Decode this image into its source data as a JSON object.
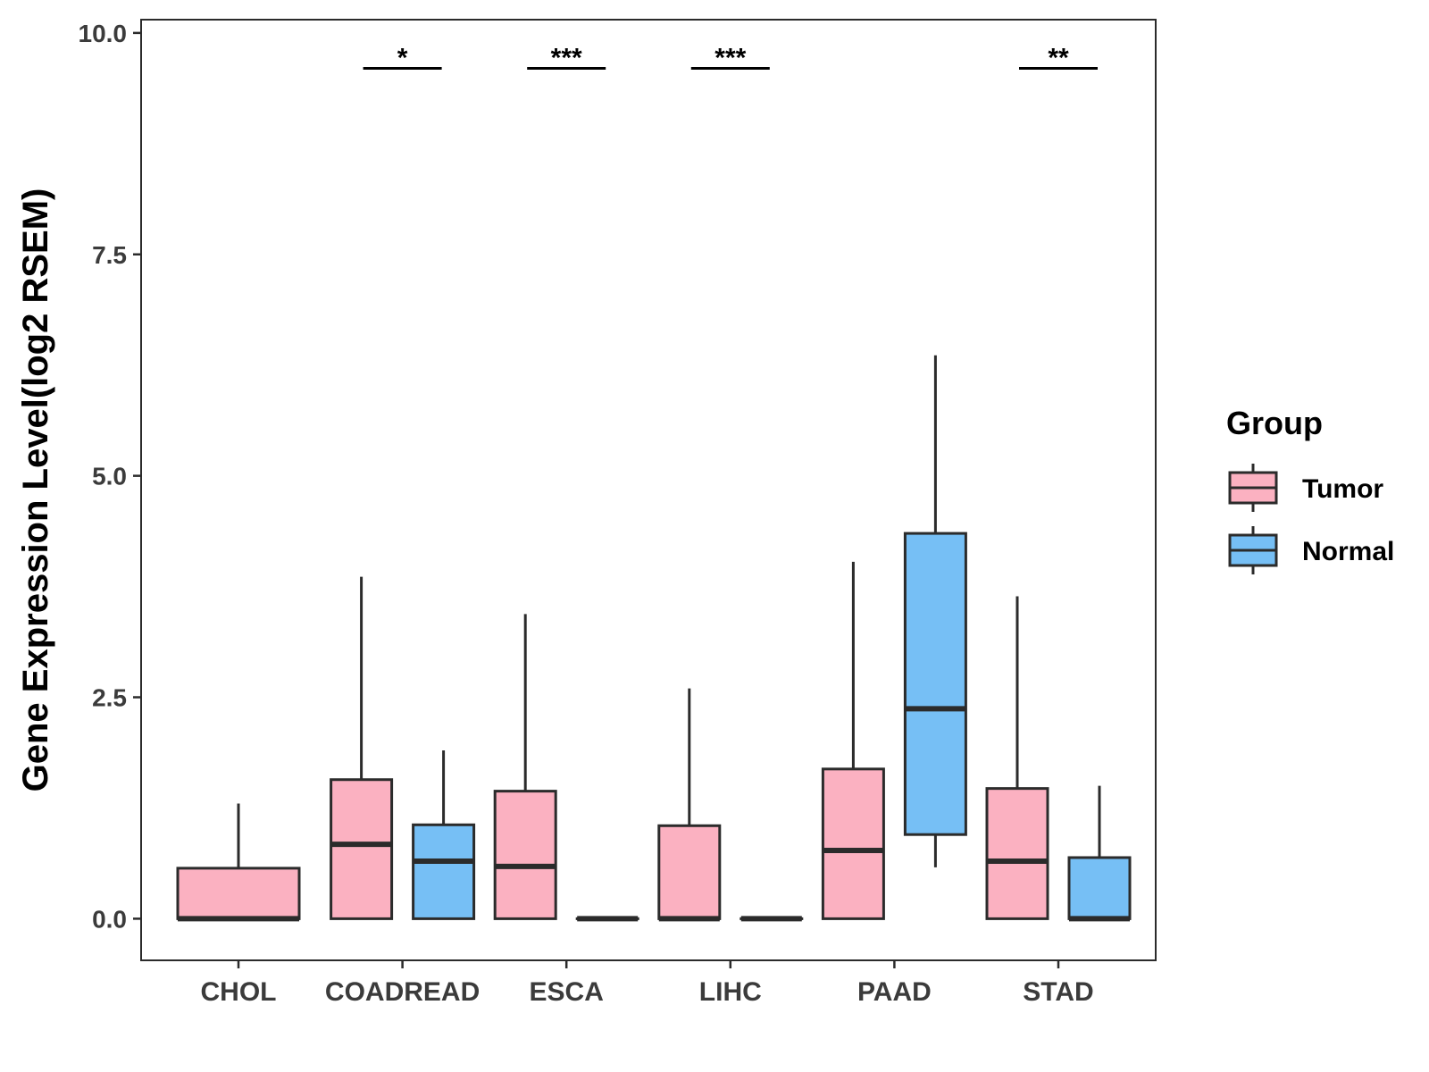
{
  "chart_data": {
    "type": "box",
    "title": "",
    "xlabel": "",
    "ylabel": "Gene Expression Level(log2 RSEM)",
    "ylim": [
      -0.47,
      10.15
    ],
    "yticks": [
      0.0,
      2.5,
      5.0,
      7.5,
      10.0
    ],
    "ytick_labels": [
      "0.0",
      "2.5",
      "5.0",
      "7.5",
      "10.0"
    ],
    "grid": false,
    "legend": {
      "title": "Group",
      "position": "right",
      "entries": [
        {
          "name": "Tumor",
          "color": "#FBB1C1"
        },
        {
          "name": "Normal",
          "color": "#76BFF5"
        }
      ]
    },
    "categories": [
      "CHOL",
      "COADREAD",
      "ESCA",
      "LIHC",
      "PAAD",
      "STAD"
    ],
    "boxes": [
      {
        "category": "CHOL",
        "group": "Tumor",
        "whisker_low": 0.0,
        "q1": 0.0,
        "median": 0.0,
        "q3": 0.57,
        "whisker_high": 1.3,
        "full_width": true
      },
      {
        "category": "COADREAD",
        "group": "Tumor",
        "whisker_low": 0.0,
        "q1": 0.0,
        "median": 0.84,
        "q3": 1.57,
        "whisker_high": 3.86
      },
      {
        "category": "COADREAD",
        "group": "Normal",
        "whisker_low": 0.0,
        "q1": 0.0,
        "median": 0.65,
        "q3": 1.06,
        "whisker_high": 1.9
      },
      {
        "category": "ESCA",
        "group": "Tumor",
        "whisker_low": 0.0,
        "q1": 0.0,
        "median": 0.59,
        "q3": 1.44,
        "whisker_high": 3.44
      },
      {
        "category": "ESCA",
        "group": "Normal",
        "whisker_low": 0.0,
        "q1": 0.0,
        "median": 0.0,
        "q3": 0.0,
        "whisker_high": 0.0
      },
      {
        "category": "LIHC",
        "group": "Tumor",
        "whisker_low": 0.0,
        "q1": 0.0,
        "median": 0.0,
        "q3": 1.05,
        "whisker_high": 2.6
      },
      {
        "category": "LIHC",
        "group": "Normal",
        "whisker_low": 0.0,
        "q1": 0.0,
        "median": 0.0,
        "q3": 0.0,
        "whisker_high": 0.0
      },
      {
        "category": "PAAD",
        "group": "Tumor",
        "whisker_low": 0.0,
        "q1": 0.0,
        "median": 0.77,
        "q3": 1.69,
        "whisker_high": 4.03
      },
      {
        "category": "PAAD",
        "group": "Normal",
        "whisker_low": 0.58,
        "q1": 0.95,
        "median": 2.37,
        "q3": 4.35,
        "whisker_high": 6.36
      },
      {
        "category": "STAD",
        "group": "Tumor",
        "whisker_low": 0.0,
        "q1": 0.0,
        "median": 0.65,
        "q3": 1.47,
        "whisker_high": 3.64
      },
      {
        "category": "STAD",
        "group": "Normal",
        "whisker_low": 0.0,
        "q1": 0.0,
        "median": 0.0,
        "q3": 0.69,
        "whisker_high": 1.5
      }
    ],
    "significance": [
      {
        "category": "COADREAD",
        "label": "*",
        "y": 9.6
      },
      {
        "category": "ESCA",
        "label": "***",
        "y": 9.6
      },
      {
        "category": "LIHC",
        "label": "***",
        "y": 9.6
      },
      {
        "category": "STAD",
        "label": "**",
        "y": 9.6
      }
    ]
  }
}
